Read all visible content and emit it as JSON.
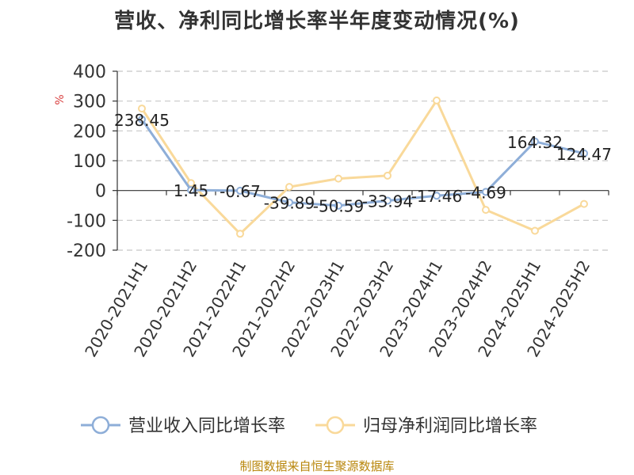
{
  "chart_data": {
    "type": "line",
    "title": "营收、净利同比增长率半年度变动情况(%)",
    "ylabel": "%",
    "xlabel": "",
    "ylim": [
      -200,
      400
    ],
    "yticks": [
      -200,
      -100,
      0,
      100,
      200,
      300,
      400
    ],
    "grid": true,
    "legend_position": "bottom",
    "categories": [
      "2020-2021H1",
      "2020-2021H2",
      "2021-2022H1",
      "2021-2022H2",
      "2022-2023H1",
      "2022-2023H2",
      "2023-2024H1",
      "2023-2024H2",
      "2024-2025H1",
      "2024-2025H2"
    ],
    "series": [
      {
        "name": "营业收入同比增长率",
        "color": "#8eaed8",
        "values": [
          238.45,
          1.45,
          -0.67,
          -39.89,
          -50.59,
          -33.94,
          -17.46,
          -4.69,
          164.32,
          124.47
        ],
        "labels": [
          "238.45",
          "1.45",
          "-0.67",
          "-39.89",
          "-50.59",
          "-33.94",
          "-17.46",
          "-4.69",
          "164.32",
          "124.47"
        ]
      },
      {
        "name": "归母净利润同比增长率",
        "color": "#f9d99a",
        "values": [
          275,
          25,
          -145,
          12,
          40,
          50,
          302,
          -65,
          -135,
          -45
        ]
      }
    ]
  },
  "source": "制图数据来自恒生聚源数据库"
}
